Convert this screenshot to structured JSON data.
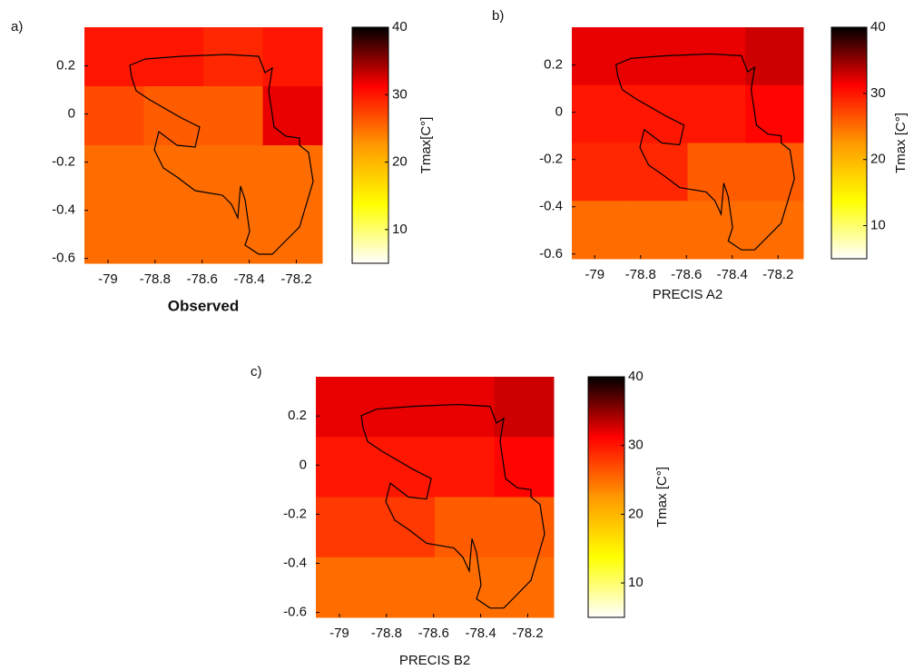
{
  "chart_data": [
    {
      "type": "heatmap",
      "panel_label": "a)",
      "xlabel": "Observed",
      "colorbar_label": "Tmax[C°]",
      "xlim": [
        -79.1,
        -78.09
      ],
      "ylim": [
        -0.62,
        0.36
      ],
      "xticks": [
        -79,
        -78.8,
        -78.6,
        -78.4,
        -78.2
      ],
      "yticks": [
        0.2,
        0,
        -0.2,
        -0.4,
        -0.6
      ],
      "values": [
        [
          30,
          30,
          29,
          30
        ],
        [
          27,
          26,
          26,
          32
        ],
        [
          25,
          25,
          25,
          25
        ],
        [
          25,
          25,
          25,
          25
        ]
      ],
      "clim": [
        5,
        40
      ],
      "cticks": [
        10,
        20,
        30,
        40
      ],
      "colormap": [
        "#ffffff",
        "#ffff00",
        "#ff9900",
        "#ff0000",
        "#000000"
      ]
    },
    {
      "type": "heatmap",
      "panel_label": "b)",
      "xlabel": "PRECIS A2",
      "colorbar_label": "Tmax [C°]",
      "xlim": [
        -79.1,
        -78.09
      ],
      "ylim": [
        -0.62,
        0.36
      ],
      "xticks": [
        -79,
        -78.8,
        -78.6,
        -78.4,
        -78.2
      ],
      "yticks": [
        0.2,
        0,
        -0.2,
        -0.4,
        -0.6
      ],
      "values": [
        [
          32,
          32,
          32,
          33
        ],
        [
          30,
          30,
          30,
          31
        ],
        [
          29,
          29,
          26,
          26
        ],
        [
          25,
          25,
          25,
          25
        ]
      ],
      "clim": [
        5,
        40
      ],
      "cticks": [
        10,
        20,
        30,
        40
      ],
      "colormap": [
        "#ffffff",
        "#ffff00",
        "#ff9900",
        "#ff0000",
        "#000000"
      ]
    },
    {
      "type": "heatmap",
      "panel_label": "c)",
      "xlabel": "PRECIS B2",
      "colorbar_label": "Tmax [C°]",
      "xlim": [
        -79.1,
        -78.09
      ],
      "ylim": [
        -0.62,
        0.36
      ],
      "xticks": [
        -79,
        -78.8,
        -78.6,
        -78.4,
        -78.2
      ],
      "yticks": [
        0.2,
        0,
        -0.2,
        -0.4,
        -0.6
      ],
      "values": [
        [
          32,
          32,
          32,
          33
        ],
        [
          30,
          30,
          30,
          31
        ],
        [
          28,
          28,
          26,
          26
        ],
        [
          25,
          25,
          25,
          25
        ]
      ],
      "clim": [
        5,
        40
      ],
      "cticks": [
        10,
        20,
        30,
        40
      ],
      "colormap": [
        "#ffffff",
        "#ffff00",
        "#ff9900",
        "#ff0000",
        "#000000"
      ]
    }
  ]
}
